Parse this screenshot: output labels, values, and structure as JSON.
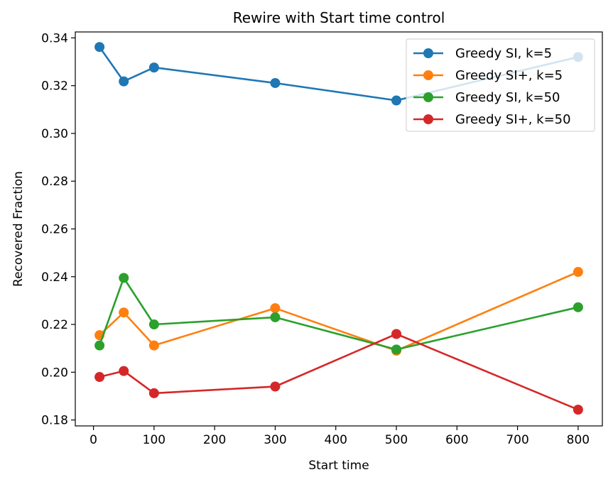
{
  "chart_data": {
    "type": "line",
    "title": "Rewire with Start time control",
    "xlabel": "Start time",
    "ylabel": "Recovered Fraction",
    "xlim": [
      -30,
      840
    ],
    "ylim": [
      0.1775,
      0.3425
    ],
    "xticks": [
      0,
      100,
      200,
      300,
      400,
      500,
      600,
      700,
      800
    ],
    "xtick_labels": [
      "0",
      "100",
      "200",
      "300",
      "400",
      "500",
      "600",
      "700",
      "800"
    ],
    "yticks": [
      0.18,
      0.2,
      0.22,
      0.24,
      0.26,
      0.28,
      0.3,
      0.32,
      0.34
    ],
    "ytick_labels": [
      "0.18",
      "0.20",
      "0.22",
      "0.24",
      "0.26",
      "0.28",
      "0.30",
      "0.32",
      "0.34"
    ],
    "grid": false,
    "legend_position": "top-right",
    "x": [
      10,
      50,
      100,
      300,
      500,
      800
    ],
    "series": [
      {
        "name": "Greedy SI, k=5",
        "color": "#1f77b4",
        "values": [
          0.3362,
          0.3218,
          0.3276,
          0.3211,
          0.3138,
          0.332
        ]
      },
      {
        "name": "Greedy SI+, k=5",
        "color": "#ff7f0e",
        "values": [
          0.2155,
          0.225,
          0.2112,
          0.2268,
          0.209,
          0.242
        ]
      },
      {
        "name": "Greedy SI, k=50",
        "color": "#2ca02c",
        "values": [
          0.2112,
          0.2395,
          0.22,
          0.223,
          0.2095,
          0.2272
        ]
      },
      {
        "name": "Greedy SI+, k=50",
        "color": "#d62728",
        "values": [
          0.198,
          0.2005,
          0.1912,
          0.194,
          0.216,
          0.1843
        ]
      }
    ]
  }
}
